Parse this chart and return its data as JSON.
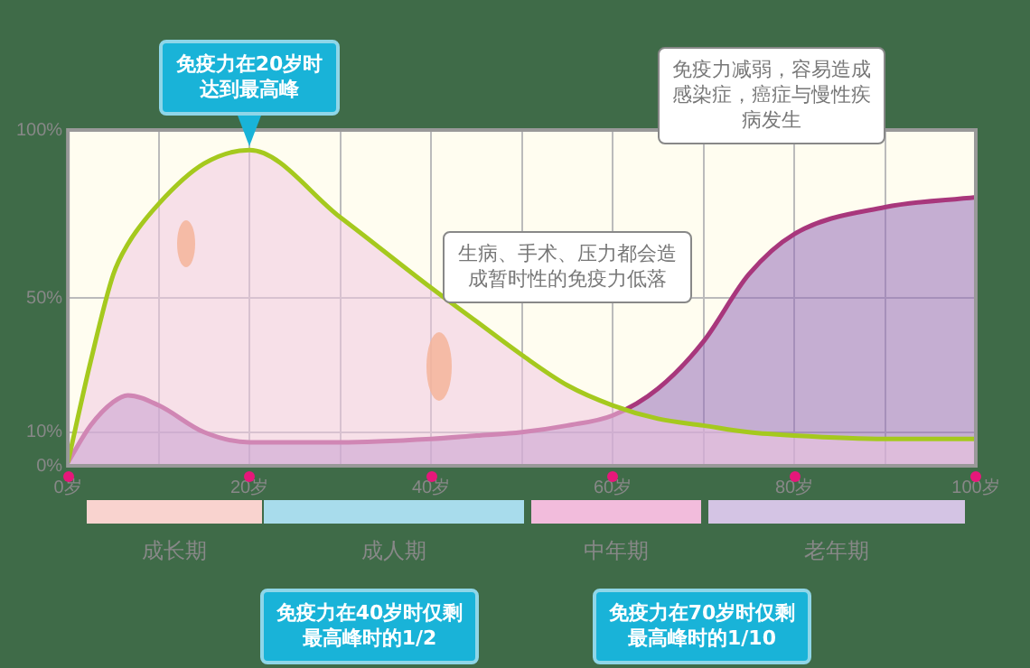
{
  "chart_data": {
    "type": "area",
    "x": [
      0,
      2.5,
      5,
      6.6,
      10,
      15,
      20,
      30,
      40,
      45,
      50,
      55,
      60,
      65,
      70,
      75,
      80,
      90,
      100
    ],
    "series": [
      {
        "color": "#a5c91e",
        "values": [
          1,
          31,
          57,
          66,
          78,
          90,
          94,
          74,
          53,
          43,
          33,
          24,
          18,
          14,
          12,
          10,
          9,
          8,
          8
        ]
      },
      {
        "color": "#a8377c",
        "values": [
          1,
          12,
          19,
          21,
          18,
          10,
          7,
          7,
          8,
          9,
          10,
          12,
          15,
          23,
          37,
          57,
          69,
          77,
          80
        ]
      }
    ],
    "xlim": [
      0,
      100
    ],
    "xticks": [
      {
        "value": 0,
        "label": "0岁"
      },
      {
        "value": 10,
        "label": null
      },
      {
        "value": 20,
        "label": "20岁"
      },
      {
        "value": 30,
        "label": null
      },
      {
        "value": 40,
        "label": "40岁"
      },
      {
        "value": 50,
        "label": null
      },
      {
        "value": 60,
        "label": "60岁"
      },
      {
        "value": 70,
        "label": null
      },
      {
        "value": 80,
        "label": "80岁"
      },
      {
        "value": 90,
        "label": null
      },
      {
        "value": 100,
        "label": "100岁"
      }
    ],
    "ylim": [
      0,
      100
    ],
    "yticks": [
      {
        "value": 0,
        "label": "0%"
      },
      {
        "value": 10,
        "label": "10%"
      },
      {
        "value": 50,
        "label": "50%"
      },
      {
        "value": 100,
        "label": "100%"
      }
    ],
    "grid": true,
    "legend": false,
    "annotations": [
      {
        "text": "免疫力在20岁时达到最高峰",
        "x": 20,
        "y": 94
      },
      "免疫力减弱，容易造成感染症，癌症与慢性疾病发生",
      "生病、手术、压力都会造成暂时性的免疫力低落",
      "免疫力在40岁时仅剩最高峰时的1/2",
      "免疫力在70岁时仅剩最高峰时的1/10",
      "成长期",
      "成人期",
      "中年期",
      "老年期"
    ]
  }
}
